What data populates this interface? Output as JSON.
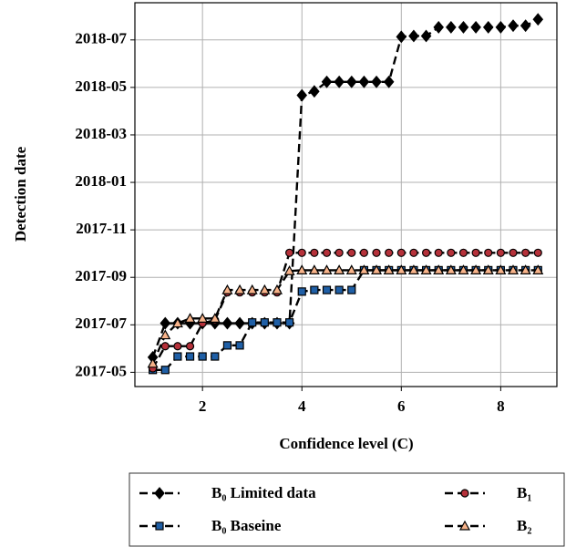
{
  "chart_data": {
    "type": "line",
    "x_label": "Confidence level (C)",
    "y_label": "Detection date",
    "x": [
      1.0,
      1.25,
      1.5,
      1.75,
      2.0,
      2.25,
      2.5,
      2.75,
      3.0,
      3.25,
      3.5,
      3.75,
      4.0,
      4.25,
      4.5,
      4.75,
      5.0,
      5.25,
      5.5,
      5.75,
      6.0,
      6.25,
      6.5,
      6.75,
      7.0,
      7.25,
      7.5,
      7.75,
      8.0,
      8.25,
      8.5,
      8.75
    ],
    "series": [
      {
        "name": "B₀ Limited data",
        "color": "#000000",
        "marker": "diamond",
        "values": [
          "2017-05-20",
          "2017-07-03",
          "2017-07-03",
          "2017-07-03",
          "2017-07-03",
          "2017-07-03",
          "2017-07-03",
          "2017-07-03",
          "2017-07-03",
          "2017-07-03",
          "2017-07-03",
          "2017-07-03",
          "2018-04-21",
          "2018-04-26",
          "2018-05-08",
          "2018-05-08",
          "2018-05-08",
          "2018-05-08",
          "2018-05-08",
          "2018-05-08",
          "2018-07-05",
          "2018-07-06",
          "2018-07-06",
          "2018-07-17",
          "2018-07-17",
          "2018-07-17",
          "2018-07-17",
          "2018-07-17",
          "2018-07-17",
          "2018-07-19",
          "2018-07-19",
          "2018-07-27"
        ]
      },
      {
        "name": "B₀ Baseine",
        "color": "#1f5fa6",
        "marker": "square",
        "values": [
          "2017-05-04",
          "2017-05-04",
          "2017-05-21",
          "2017-05-21",
          "2017-05-21",
          "2017-05-21",
          "2017-06-05",
          "2017-06-05",
          "2017-07-04",
          "2017-07-04",
          "2017-07-04",
          "2017-07-04",
          "2017-08-13",
          "2017-08-15",
          "2017-08-15",
          "2017-08-15",
          "2017-08-15",
          "2017-09-10",
          "2017-09-10",
          "2017-09-10",
          "2017-09-10",
          "2017-09-10",
          "2017-09-10",
          "2017-09-10",
          "2017-09-10",
          "2017-09-10",
          "2017-09-10",
          "2017-09-10",
          "2017-09-10",
          "2017-09-10",
          "2017-09-10",
          "2017-09-10"
        ]
      },
      {
        "name": "B₁",
        "color": "#b5313a",
        "marker": "circle",
        "values": [
          "2017-05-06",
          "2017-06-04",
          "2017-06-04",
          "2017-06-04",
          "2017-07-03",
          "2017-07-07",
          "2017-08-12",
          "2017-08-12",
          "2017-08-12",
          "2017-08-12",
          "2017-08-12",
          "2017-10-02",
          "2017-10-02",
          "2017-10-02",
          "2017-10-02",
          "2017-10-02",
          "2017-10-02",
          "2017-10-02",
          "2017-10-02",
          "2017-10-02",
          "2017-10-02",
          "2017-10-02",
          "2017-10-02",
          "2017-10-02",
          "2017-10-02",
          "2017-10-02",
          "2017-10-02",
          "2017-10-02",
          "2017-10-02",
          "2017-10-02",
          "2017-10-02",
          "2017-10-02"
        ]
      },
      {
        "name": "B₂",
        "color": "#f7b38a",
        "marker": "triangle",
        "values": [
          "2017-05-12",
          "2017-06-18",
          "2017-07-03",
          "2017-07-09",
          "2017-07-09",
          "2017-07-09",
          "2017-08-15",
          "2017-08-15",
          "2017-08-15",
          "2017-08-15",
          "2017-08-15",
          "2017-09-09",
          "2017-09-10",
          "2017-09-10",
          "2017-09-10",
          "2017-09-10",
          "2017-09-10",
          "2017-09-10",
          "2017-09-10",
          "2017-09-10",
          "2017-09-10",
          "2017-09-10",
          "2017-09-10",
          "2017-09-10",
          "2017-09-10",
          "2017-09-10",
          "2017-09-10",
          "2017-09-10",
          "2017-09-10",
          "2017-09-10",
          "2017-09-10",
          "2017-09-10"
        ]
      }
    ],
    "xlim": [
      0.64,
      9.13
    ],
    "xticks": [
      2,
      4,
      6,
      8
    ],
    "ylim": [
      "2017-04-13",
      "2018-08-18"
    ],
    "yticks": [
      "2017-05",
      "2017-07",
      "2017-09",
      "2017-11",
      "2018-01",
      "2018-03",
      "2018-05",
      "2018-07"
    ],
    "grid": true
  }
}
